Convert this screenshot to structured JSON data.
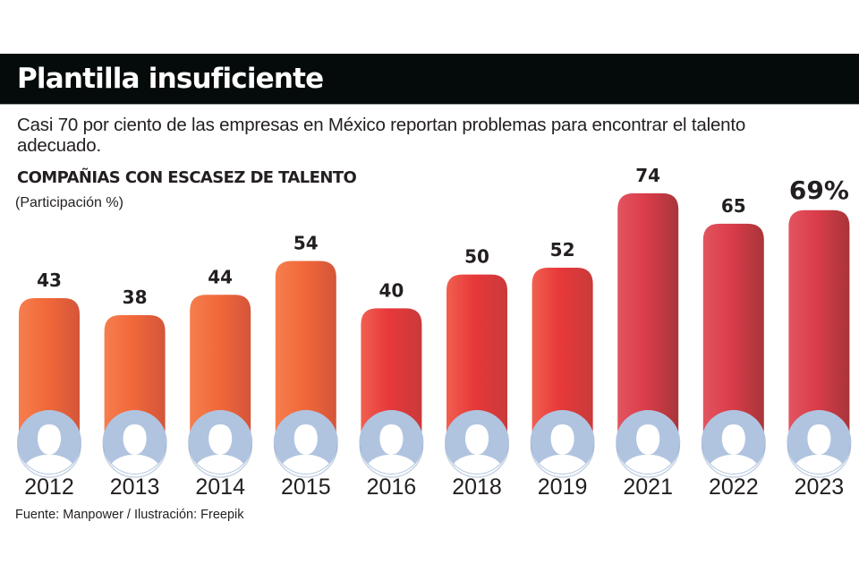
{
  "header": {
    "title": "Plantilla insuficiente",
    "subtitle": "Casi 70 por ciento de las empresas en México reportan problemas para encontrar el talento adecuado."
  },
  "footer": {
    "source": "Fuente: Manpower / Ilustración: Freepik"
  },
  "colors": {
    "title_bar": "#050b0b",
    "bar_orange": "#f2693a",
    "bar_red": "#e8383a",
    "bar_crimson": "#d83a48",
    "avatar_circle": "#b0c4e0",
    "text": "#231f20"
  },
  "chart_data": {
    "type": "bar",
    "title": "COMPAÑIAS CON ESCASEZ DE TALENTO",
    "ylabel": "(Participación %)",
    "xlabel": "",
    "categories": [
      "2012",
      "2013",
      "2014",
      "2015",
      "2016",
      "2018",
      "2019",
      "2021",
      "2022",
      "2023"
    ],
    "values": [
      43,
      38,
      44,
      54,
      40,
      50,
      52,
      74,
      65,
      69
    ],
    "value_labels": [
      "43",
      "38",
      "44",
      "54",
      "40",
      "50",
      "52",
      "74",
      "65",
      "69%"
    ],
    "bar_color_groups": [
      "orange",
      "orange",
      "orange",
      "orange",
      "red",
      "red",
      "red",
      "crimson",
      "crimson",
      "crimson"
    ],
    "avatars": [
      "man-wavy-hair",
      "woman-short-hair",
      "man-short-hair",
      "woman-long-hair",
      "man-flat-top",
      "person-curly-hair",
      "woman-bun",
      "woman-updo",
      "woman-bob",
      "man-short-hair"
    ],
    "ylim": [
      0,
      80
    ],
    "grid": false,
    "legend": "none"
  }
}
